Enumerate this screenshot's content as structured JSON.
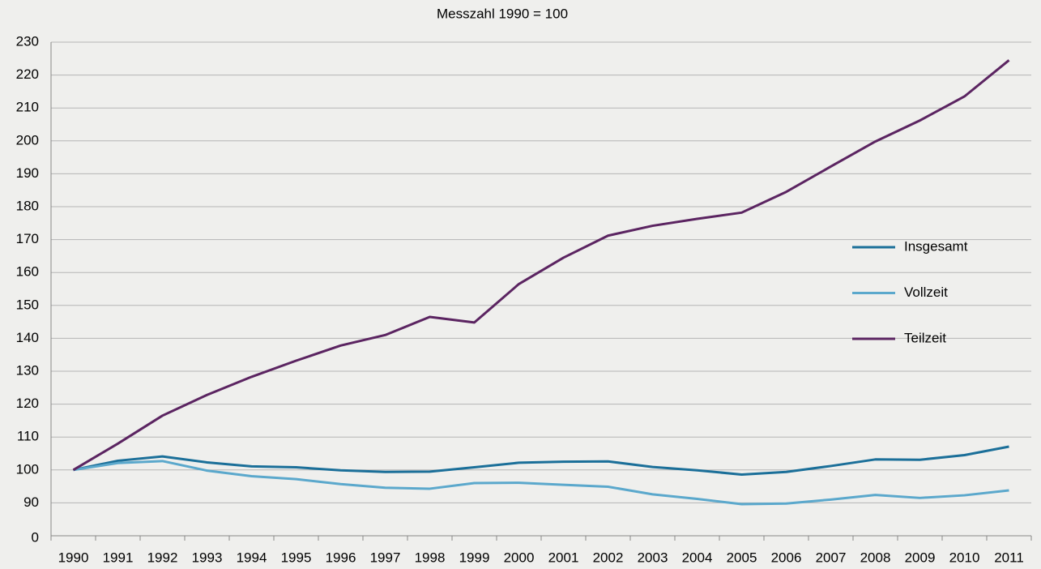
{
  "chart_data": {
    "type": "line",
    "title": "Messzahl 1990 = 100",
    "categories": [
      "1990",
      "1991",
      "1992",
      "1993",
      "1994",
      "1995",
      "1996",
      "1997",
      "1998",
      "1999",
      "2000",
      "2001",
      "2002",
      "2003",
      "2004",
      "2005",
      "2006",
      "2007",
      "2008",
      "2009",
      "2010",
      "2011"
    ],
    "series": [
      {
        "name": "Insgesamt",
        "color": "#1b6f99",
        "values": [
          100,
          102.8,
          104.1,
          102.3,
          101.1,
          100.8,
          99.9,
          99.4,
          99.5,
          100.8,
          102.2,
          102.5,
          102.6,
          100.9,
          99.9,
          98.6,
          99.4,
          101.2,
          103.2,
          103.1,
          104.5,
          107.1
        ]
      },
      {
        "name": "Vollzeit",
        "color": "#5ba8cc",
        "values": [
          100,
          102.1,
          102.7,
          99.8,
          98.1,
          97.2,
          95.7,
          94.6,
          94.3,
          96,
          96.1,
          95.5,
          94.9,
          92.6,
          91.2,
          89.6,
          89.8,
          91,
          92.4,
          91.5,
          92.3,
          93.8
        ]
      },
      {
        "name": "Teilzeit",
        "color": "#5b2461",
        "values": [
          100,
          108,
          116.5,
          122.8,
          128.3,
          133.2,
          137.8,
          141,
          146.5,
          144.8,
          156.5,
          164.5,
          171.2,
          174.2,
          176.3,
          178.2,
          184.5,
          192.2,
          199.8,
          206.2,
          213.5,
          224.5
        ]
      }
    ],
    "ylim": [
      80,
      230
    ],
    "yticks": [
      90,
      100,
      110,
      120,
      130,
      140,
      150,
      160,
      170,
      180,
      190,
      200,
      210,
      220,
      230
    ],
    "y_axis_break_label": "0",
    "grid": true
  }
}
